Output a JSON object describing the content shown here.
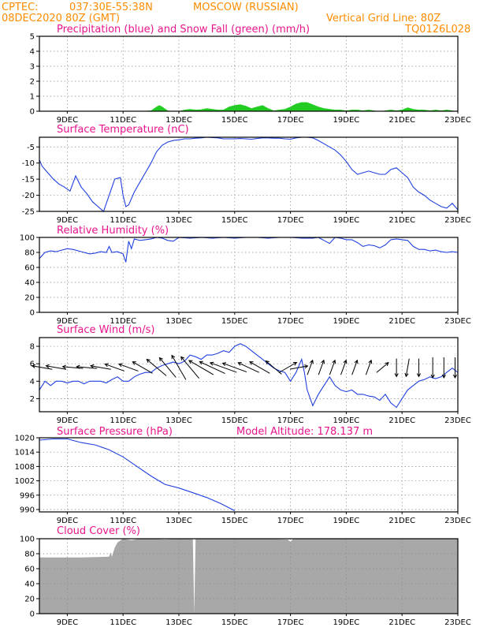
{
  "header": {
    "source_label": "CPTEC:",
    "coords": "037:30E-55:38N",
    "location": "MOSCOW (RUSSIAN)",
    "run": "08DEC2020 80Z (GMT)",
    "vertical_grid": "Vertical Grid Line: 80Z",
    "model_code": "TQ0126L028"
  },
  "colors": {
    "header": "#ff8c00",
    "titles": "#e8158c",
    "series": "#2040e0",
    "snowfall": "#22cc22",
    "cloud": "#a8a8a8"
  },
  "chart_data": [
    {
      "id": "precip",
      "type": "area",
      "title": "Precipitation (blue) and Snow Fall (green) (mm/h)",
      "x_ticks": [
        "9DEC",
        "11DEC",
        "13DEC",
        "15DEC",
        "17DEC",
        "19DEC",
        "21DEC",
        "23DEC"
      ],
      "ylim": [
        0,
        5
      ],
      "y_ticks": [
        0,
        1,
        2,
        3,
        4,
        5
      ],
      "grid": true,
      "x": [
        8.0,
        11.5,
        12.0,
        12.2,
        12.3,
        12.4,
        12.6,
        12.8,
        13.0,
        13.2,
        13.4,
        13.6,
        13.8,
        14.0,
        14.2,
        14.4,
        14.6,
        14.8,
        15.0,
        15.2,
        15.4,
        15.6,
        15.8,
        16.0,
        16.2,
        16.4,
        16.6,
        16.8,
        17.0,
        17.2,
        17.4,
        17.6,
        17.8,
        18.0,
        18.2,
        18.4,
        18.6,
        18.8,
        19.0,
        19.2,
        19.4,
        19.6,
        19.8,
        20.0,
        20.2,
        20.4,
        20.6,
        20.8,
        21.0,
        21.2,
        21.4,
        21.6,
        21.8,
        22.0,
        22.2,
        22.4,
        22.6,
        22.8,
        23.0
      ],
      "values": [
        0,
        0,
        0.05,
        0.3,
        0.4,
        0.3,
        0.05,
        0,
        0,
        0.1,
        0.15,
        0.1,
        0.12,
        0.2,
        0.15,
        0.1,
        0.1,
        0.3,
        0.4,
        0.45,
        0.35,
        0.2,
        0.3,
        0.4,
        0.2,
        0.05,
        0.1,
        0.15,
        0.3,
        0.5,
        0.6,
        0.6,
        0.45,
        0.3,
        0.2,
        0.15,
        0.1,
        0.1,
        0.05,
        0.1,
        0.1,
        0.05,
        0.1,
        0.05,
        0,
        0.05,
        0.1,
        0.05,
        0.1,
        0.25,
        0.15,
        0.1,
        0.1,
        0.05,
        0.1,
        0.05,
        0.1,
        0.05,
        0
      ]
    },
    {
      "id": "temperature",
      "type": "line",
      "title": "Surface Temperature (nC)",
      "x_ticks": [
        "9DEC",
        "11DEC",
        "13DEC",
        "15DEC",
        "17DEC",
        "19DEC",
        "21DEC",
        "23DEC"
      ],
      "ylim": [
        -25,
        -2
      ],
      "y_ticks": [
        -25,
        -20,
        -15,
        -10,
        -5
      ],
      "grid": true,
      "x": [
        8.0,
        8.1,
        8.3,
        8.5,
        8.7,
        8.9,
        9.1,
        9.3,
        9.5,
        9.7,
        9.9,
        10.1,
        10.3,
        10.5,
        10.7,
        10.9,
        11.0,
        11.1,
        11.2,
        11.4,
        11.6,
        11.8,
        12.0,
        12.2,
        12.4,
        12.6,
        12.8,
        13.0,
        13.2,
        13.4,
        13.6,
        13.8,
        14.0,
        14.2,
        14.4,
        14.6,
        14.8,
        15.0,
        15.2,
        15.4,
        15.6,
        15.8,
        16.0,
        16.2,
        16.4,
        16.6,
        16.8,
        17.0,
        17.2,
        17.4,
        17.6,
        17.8,
        18.0,
        18.2,
        18.4,
        18.6,
        18.8,
        19.0,
        19.2,
        19.4,
        19.6,
        19.8,
        20.0,
        20.2,
        20.4,
        20.6,
        20.8,
        21.0,
        21.2,
        21.4,
        21.6,
        21.8,
        22.0,
        22.2,
        22.4,
        22.6,
        22.8,
        23.0
      ],
      "values": [
        -9,
        -11,
        -13,
        -15,
        -16.5,
        -17.5,
        -18.7,
        -14,
        -17.5,
        -19.5,
        -22,
        -23.5,
        -25,
        -20,
        -15,
        -14.5,
        -20,
        -23.5,
        -23,
        -19,
        -16,
        -13,
        -10,
        -6.5,
        -4.5,
        -3.5,
        -3,
        -2.8,
        -2.5,
        -2.5,
        -2.3,
        -2.2,
        -2,
        -2.1,
        -2.2,
        -2.5,
        -2.5,
        -2.5,
        -2.4,
        -2.5,
        -2.6,
        -2.4,
        -2.2,
        -2.2,
        -2.3,
        -2.3,
        -2.5,
        -2.6,
        -2.2,
        -2,
        -2,
        -2.2,
        -3,
        -4,
        -5,
        -6,
        -7.5,
        -9.5,
        -12,
        -13.5,
        -13,
        -12.5,
        -13,
        -13.5,
        -13.5,
        -12,
        -11.5,
        -13,
        -14.5,
        -17.5,
        -19,
        -20,
        -21.5,
        -22.5,
        -23.5,
        -24,
        -22.5,
        -24.5
      ]
    },
    {
      "id": "humidity",
      "type": "line",
      "title": "Relative Humidity (%)",
      "x_ticks": [
        "9DEC",
        "11DEC",
        "13DEC",
        "15DEC",
        "17DEC",
        "19DEC",
        "21DEC",
        "23DEC"
      ],
      "ylim": [
        0,
        100
      ],
      "y_ticks": [
        0,
        20,
        40,
        60,
        80,
        100
      ],
      "grid": true,
      "x": [
        8.0,
        8.2,
        8.4,
        8.6,
        8.8,
        9.0,
        9.2,
        9.4,
        9.6,
        9.8,
        10.0,
        10.2,
        10.4,
        10.5,
        10.6,
        10.8,
        11.0,
        11.1,
        11.2,
        11.3,
        11.4,
        11.6,
        11.8,
        12.0,
        12.2,
        12.4,
        12.6,
        12.8,
        13.0,
        13.4,
        13.8,
        14.2,
        14.6,
        15.0,
        15.4,
        15.8,
        16.2,
        16.6,
        17.0,
        17.4,
        17.8,
        18.0,
        18.2,
        18.4,
        18.6,
        18.8,
        19.0,
        19.2,
        19.4,
        19.6,
        19.8,
        20.0,
        20.2,
        20.4,
        20.6,
        20.8,
        21.0,
        21.2,
        21.4,
        21.6,
        21.8,
        22.0,
        22.2,
        22.4,
        22.6,
        22.8,
        23.0
      ],
      "values": [
        72,
        80,
        82,
        81,
        83,
        85,
        84,
        82,
        80,
        78,
        79,
        81,
        80,
        88,
        80,
        81,
        78,
        67,
        95,
        85,
        98,
        96,
        97,
        98,
        100,
        99,
        96,
        95,
        100,
        99,
        100,
        99,
        100,
        99,
        100,
        100,
        99,
        100,
        100,
        99,
        99,
        100,
        96,
        92,
        100,
        99,
        97,
        97,
        93,
        88,
        90,
        89,
        86,
        90,
        97,
        98,
        97,
        96,
        88,
        84,
        84,
        82,
        83,
        81,
        80,
        81,
        80
      ]
    },
    {
      "id": "wind",
      "type": "line",
      "title": "Surface Wind (m/s)",
      "x_ticks": [
        "9DEC",
        "11DEC",
        "13DEC",
        "15DEC",
        "17DEC",
        "19DEC",
        "21DEC",
        "23DEC"
      ],
      "ylim": [
        0.5,
        9
      ],
      "y_ticks": [
        2,
        4,
        6,
        8
      ],
      "grid": true,
      "x": [
        8.0,
        8.2,
        8.4,
        8.6,
        8.8,
        9.0,
        9.2,
        9.4,
        9.6,
        9.8,
        10.0,
        10.2,
        10.4,
        10.6,
        10.8,
        11.0,
        11.2,
        11.4,
        11.6,
        11.8,
        12.0,
        12.2,
        12.4,
        12.6,
        12.8,
        13.0,
        13.2,
        13.4,
        13.6,
        13.8,
        14.0,
        14.2,
        14.4,
        14.6,
        14.8,
        15.0,
        15.2,
        15.4,
        15.6,
        15.8,
        16.0,
        16.2,
        16.4,
        16.6,
        16.8,
        17.0,
        17.1,
        17.2,
        17.4,
        17.5,
        17.6,
        17.8,
        18.0,
        18.2,
        18.4,
        18.6,
        18.8,
        19.0,
        19.2,
        19.4,
        19.6,
        19.8,
        20.0,
        20.2,
        20.4,
        20.6,
        20.8,
        21.0,
        21.2,
        21.4,
        21.6,
        21.8,
        22.0,
        22.2,
        22.4,
        22.6,
        22.8,
        23.0
      ],
      "values": [
        3,
        4,
        3.5,
        4,
        4,
        3.8,
        4,
        4,
        3.7,
        4,
        4,
        4,
        3.8,
        4.2,
        4.5,
        4,
        4,
        4.5,
        4.8,
        5,
        5,
        5.5,
        5.8,
        6,
        6.2,
        6,
        6.3,
        7,
        6.8,
        6.5,
        7,
        7,
        7.2,
        7.5,
        7.3,
        8,
        8.3,
        8,
        7.5,
        7,
        6.5,
        6,
        5.5,
        5.2,
        5,
        4,
        4.5,
        5,
        6.5,
        5,
        3,
        1.2,
        2.5,
        3.5,
        4.5,
        3.5,
        3,
        2.8,
        3,
        2.5,
        2.5,
        2.3,
        2.2,
        1.8,
        2.5,
        1.5,
        1,
        2,
        3,
        3.5,
        4,
        4.2,
        4.5,
        4.3,
        4.5,
        5,
        5.5,
        5
      ]
    },
    {
      "id": "pressure",
      "type": "line",
      "title": "Surface Pressure (hPa)",
      "annotation": "Model Altitude: 178.137 m",
      "x_ticks": [
        "9DEC",
        "11DEC",
        "13DEC",
        "15DEC",
        "17DEC",
        "19DEC",
        "21DEC",
        "23DEC"
      ],
      "ylim": [
        989,
        1020
      ],
      "y_ticks": [
        990,
        996,
        1002,
        1008,
        1014,
        1020
      ],
      "grid": true,
      "x": [
        8.0,
        8.5,
        9.0,
        9.5,
        10.0,
        10.5,
        11.0,
        11.5,
        12.0,
        12.5,
        13.0,
        13.5,
        14.0,
        14.5,
        15.0
      ],
      "values": [
        1019,
        1019.5,
        1019.5,
        1018,
        1017,
        1015,
        1012,
        1008,
        1004,
        1000.5,
        999,
        997,
        995,
        992.5,
        989.5
      ]
    },
    {
      "id": "cloud",
      "type": "area",
      "title": "Cloud Cover (%)",
      "x_ticks": [
        "9DEC",
        "11DEC",
        "13DEC",
        "15DEC",
        "17DEC",
        "19DEC",
        "21DEC",
        "23DEC"
      ],
      "ylim": [
        0,
        100
      ],
      "y_ticks": [
        0,
        20,
        40,
        60,
        80,
        100
      ],
      "grid": true,
      "x": [
        8.0,
        9.5,
        10.5,
        10.55,
        10.6,
        10.7,
        10.8,
        11.0,
        11.3,
        11.6,
        12.0,
        12.5,
        13.0,
        13.5,
        13.55,
        13.6,
        14.0,
        14.5,
        15.0,
        16.0,
        16.9,
        17.0,
        17.1,
        17.3,
        18.0,
        19.0,
        20.0,
        21.0,
        22.0,
        23.0
      ],
      "values": [
        75,
        75,
        76,
        82,
        76,
        88,
        95,
        100,
        98,
        100,
        100,
        99,
        100,
        100,
        0,
        100,
        100,
        100,
        100,
        100,
        99,
        96,
        100,
        100,
        100,
        100,
        100,
        100,
        100,
        100
      ]
    }
  ],
  "wind_barbs": [
    {
      "x": 8.1,
      "dir": 100,
      "speed": 5
    },
    {
      "x": 8.6,
      "dir": 100,
      "speed": 5
    },
    {
      "x": 9.2,
      "dir": 95,
      "speed": 5
    },
    {
      "x": 9.7,
      "dir": 95,
      "speed": 5
    },
    {
      "x": 10.2,
      "dir": 100,
      "speed": 5
    },
    {
      "x": 10.7,
      "dir": 110,
      "speed": 5
    },
    {
      "x": 11.2,
      "dir": 110,
      "speed": 5
    },
    {
      "x": 11.7,
      "dir": 120,
      "speed": 6
    },
    {
      "x": 12.2,
      "dir": 130,
      "speed": 7
    },
    {
      "x": 12.6,
      "dir": 140,
      "speed": 7
    },
    {
      "x": 13.0,
      "dir": 150,
      "speed": 8
    },
    {
      "x": 13.4,
      "dir": 140,
      "speed": 8
    },
    {
      "x": 13.8,
      "dir": 120,
      "speed": 8
    },
    {
      "x": 14.2,
      "dir": 115,
      "speed": 8
    },
    {
      "x": 14.6,
      "dir": 110,
      "speed": 8
    },
    {
      "x": 15.0,
      "dir": 110,
      "speed": 7
    },
    {
      "x": 15.5,
      "dir": 115,
      "speed": 6
    },
    {
      "x": 15.9,
      "dir": 120,
      "speed": 6
    },
    {
      "x": 16.4,
      "dir": 130,
      "speed": 5
    },
    {
      "x": 16.9,
      "dir": 240,
      "speed": 5
    },
    {
      "x": 17.3,
      "dir": 260,
      "speed": 4
    },
    {
      "x": 17.7,
      "dir": 200,
      "speed": 3
    },
    {
      "x": 18.1,
      "dir": 200,
      "speed": 3
    },
    {
      "x": 18.5,
      "dir": 200,
      "speed": 3
    },
    {
      "x": 18.9,
      "dir": 200,
      "speed": 3
    },
    {
      "x": 19.3,
      "dir": 200,
      "speed": 3
    },
    {
      "x": 19.8,
      "dir": 200,
      "speed": 3
    },
    {
      "x": 20.3,
      "dir": 230,
      "speed": 3
    },
    {
      "x": 20.8,
      "dir": 0,
      "speed": 4
    },
    {
      "x": 21.2,
      "dir": 10,
      "speed": 4
    },
    {
      "x": 21.6,
      "dir": 0,
      "speed": 4
    },
    {
      "x": 22.1,
      "dir": 0,
      "speed": 5
    },
    {
      "x": 22.5,
      "dir": 0,
      "speed": 5
    },
    {
      "x": 22.9,
      "dir": 0,
      "speed": 5
    }
  ]
}
